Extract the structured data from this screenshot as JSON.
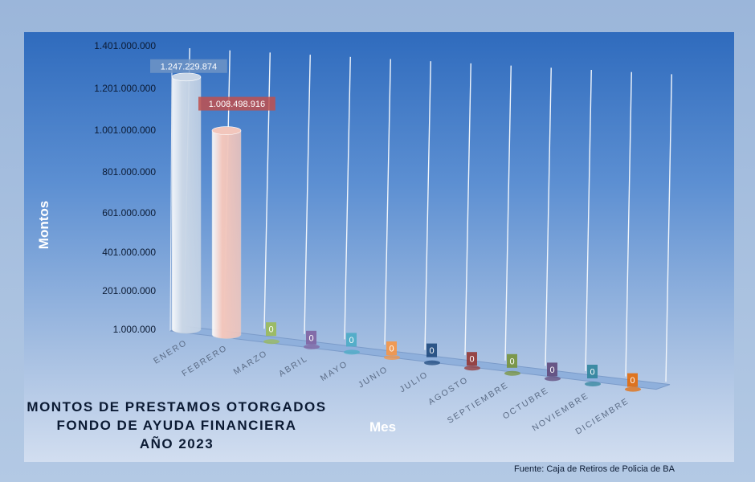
{
  "chart_data": {
    "type": "bar",
    "title": [
      "MONTOS  DE  PRESTAMOS  OTORGADOS",
      "FONDO DE AYUDA  FINANCIERA",
      "AÑO   2023"
    ],
    "xlabel": "Mes",
    "ylabel": "Montos",
    "source": "Fuente: Caja de Retiros de Policia de BA",
    "ylim": [
      1000000,
      1401000000
    ],
    "yticks": [
      "1.401.000.000",
      "1.201.000.000",
      "1.001.000.000",
      "801.000.000",
      "601.000.000",
      "401.000.000",
      "201.000.000",
      "1.000.000"
    ],
    "categories": [
      "ENERO",
      "FEBRERO",
      "MARZO",
      "ABRIL",
      "MAYO",
      "JUNIO",
      "JULIO",
      "AGOSTO",
      "SEPTIEMBRE",
      "OCTUBRE",
      "NOVIEMBRE",
      "DICIEMBRE"
    ],
    "values": [
      1247229874,
      1008498916,
      0,
      0,
      0,
      0,
      0,
      0,
      0,
      0,
      0,
      0
    ],
    "value_labels": [
      "1.247.229.874",
      "1.008.498.916",
      "0",
      "0",
      "0",
      "0",
      "0",
      "0",
      "0",
      "0",
      "0",
      "0"
    ],
    "colors": [
      "#c9d6e6",
      "#f2c6bc",
      "#9bbb59",
      "#8064a2",
      "#4bacc6",
      "#f79646",
      "#1f497d",
      "#953735",
      "#77933c",
      "#604a7b",
      "#31859c",
      "#e46c0a"
    ],
    "grid": true
  }
}
